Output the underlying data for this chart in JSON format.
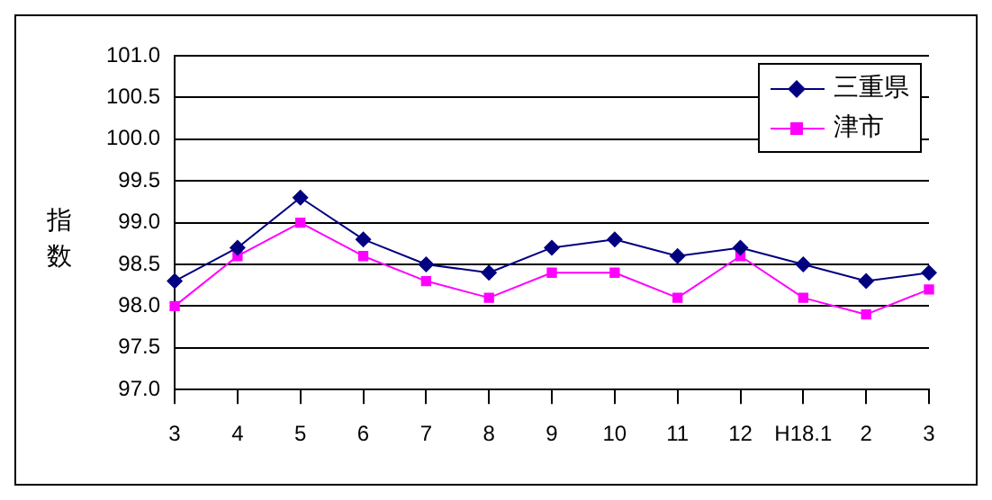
{
  "chart_data": {
    "type": "line",
    "ylabel": "指数",
    "categories": [
      "3",
      "4",
      "5",
      "6",
      "7",
      "8",
      "9",
      "10",
      "11",
      "12",
      "H18.1",
      "2",
      "3"
    ],
    "series": [
      {
        "name": "三重県",
        "color": "#000080",
        "marker": "diamond",
        "values": [
          98.3,
          98.7,
          99.3,
          98.8,
          98.5,
          98.4,
          98.7,
          98.8,
          98.6,
          98.7,
          98.5,
          98.3,
          98.4
        ]
      },
      {
        "name": "津市",
        "color": "#ff00ff",
        "marker": "square",
        "values": [
          98.0,
          98.6,
          99.0,
          98.6,
          98.3,
          98.1,
          98.4,
          98.4,
          98.1,
          98.6,
          98.1,
          97.9,
          98.2
        ]
      }
    ],
    "ylim": [
      97.0,
      101.0
    ],
    "yticks": [
      {
        "value": 97,
        "label": "97.0"
      },
      97.5,
      {
        "value": 98,
        "label": "98.0"
      },
      98.5,
      {
        "value": 99,
        "label": "99.0"
      },
      99.5,
      {
        "value": 100,
        "label": "100.0"
      },
      100.5,
      {
        "value": 101,
        "label": "101.0"
      }
    ],
    "grid": "y",
    "legend": "top right",
    "line_style": "solid"
  }
}
